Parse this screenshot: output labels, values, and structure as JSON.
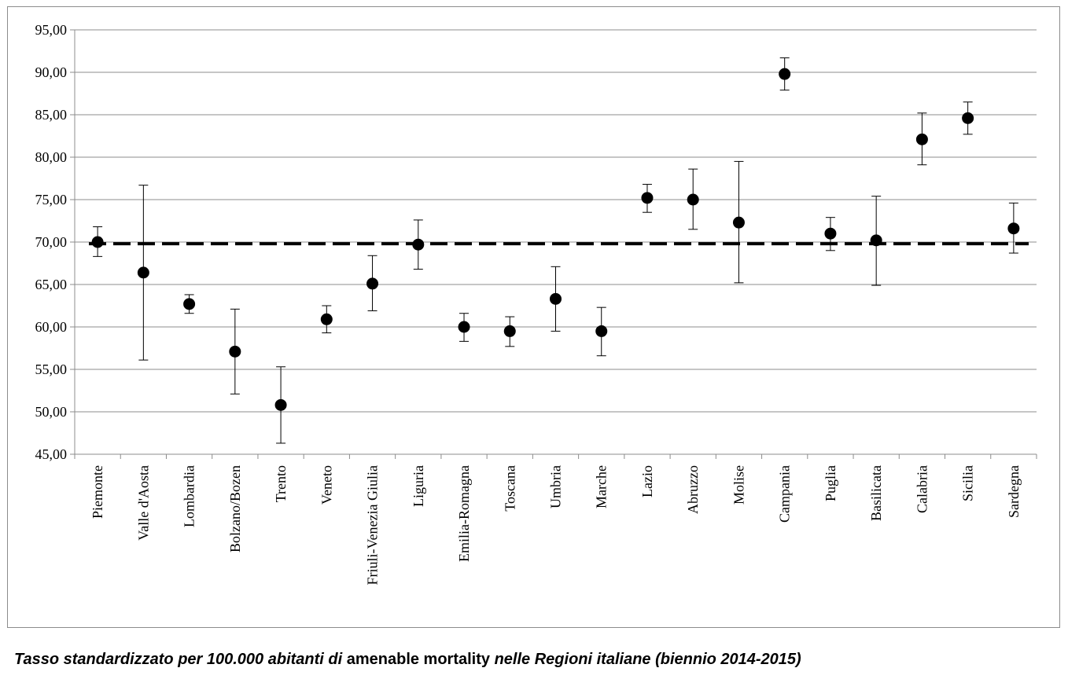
{
  "caption": {
    "part1": "Tasso standardizzato per 100.000 abitanti di",
    "part2": "amenable mortality",
    "part3": "nelle Regioni italiane (biennio 2014-2015)"
  },
  "chart_data": {
    "type": "scatter",
    "categories": [
      "Piemonte",
      "Valle d'Aosta",
      "Lombardia",
      "Bolzano/Bozen",
      "Trento",
      "Veneto",
      "Friuli-Venezia Giulia",
      "Liguria",
      "Emilia-Romagna",
      "Toscana",
      "Umbria",
      "Marche",
      "Lazio",
      "Abruzzo",
      "Molise",
      "Campania",
      "Puglia",
      "Basilicata",
      "Calabria",
      "Sicilia",
      "Sardegna"
    ],
    "values": [
      70.0,
      66.4,
      62.7,
      57.1,
      50.8,
      60.9,
      65.1,
      69.7,
      60.0,
      59.5,
      63.3,
      59.5,
      75.2,
      75.0,
      72.3,
      89.8,
      71.0,
      70.2,
      82.1,
      84.6,
      71.6
    ],
    "error_low": [
      68.3,
      56.1,
      61.6,
      52.1,
      46.3,
      59.3,
      61.9,
      66.8,
      58.3,
      57.7,
      59.5,
      56.6,
      73.5,
      71.5,
      65.2,
      87.9,
      69.0,
      64.9,
      79.1,
      82.7,
      68.7
    ],
    "error_high": [
      71.8,
      76.7,
      63.8,
      62.1,
      55.3,
      62.5,
      68.4,
      72.6,
      61.6,
      61.2,
      67.1,
      62.3,
      76.8,
      78.6,
      79.5,
      91.7,
      72.9,
      75.4,
      85.2,
      86.5,
      74.6
    ],
    "reference_line": 69.8,
    "ylim": [
      45,
      95
    ],
    "yticks": [
      "45,00",
      "50,00",
      "55,00",
      "60,00",
      "65,00",
      "70,00",
      "75,00",
      "80,00",
      "85,00",
      "90,00",
      "95,00"
    ],
    "ytick_values": [
      45,
      50,
      55,
      60,
      65,
      70,
      75,
      80,
      85,
      90,
      95
    ],
    "grid": true,
    "legend": "none",
    "colors": {
      "marker": "#000000",
      "gridline": "#8c8c8c",
      "reference_line": "#000000"
    }
  }
}
